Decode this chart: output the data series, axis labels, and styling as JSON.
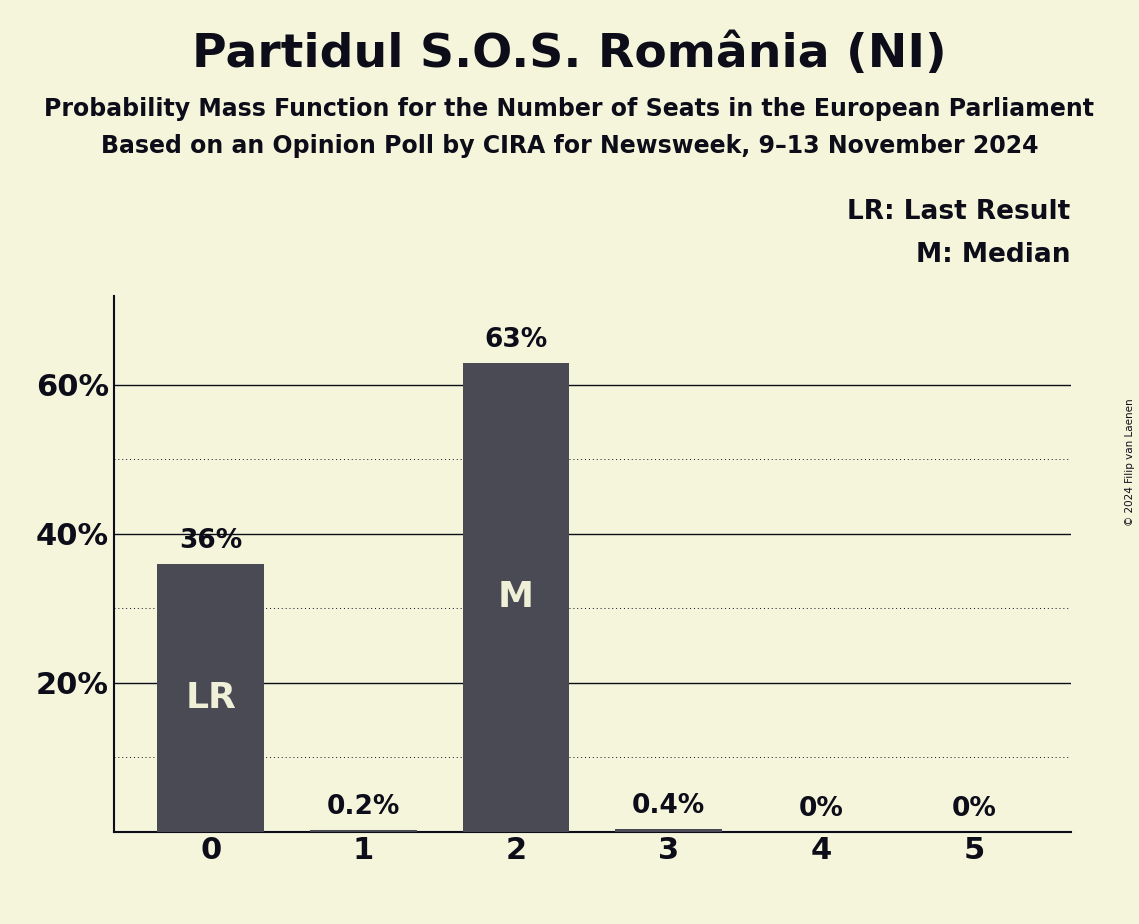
{
  "title": "Partidul S.O.S. România (NI)",
  "subtitle1": "Probability Mass Function for the Number of Seats in the European Parliament",
  "subtitle2": "Based on an Opinion Poll by CIRA for Newsweek, 9–13 November 2024",
  "copyright": "© 2024 Filip van Laenen",
  "categories": [
    0,
    1,
    2,
    3,
    4,
    5
  ],
  "values": [
    0.36,
    0.002,
    0.63,
    0.004,
    0.0,
    0.0
  ],
  "bar_color": "#4a4a55",
  "background_color": "#F5F5DC",
  "label_color": "#F0F0D8",
  "text_color": "#0d0d1a",
  "bar_labels": [
    "36%",
    "0.2%",
    "63%",
    "0.4%",
    "0%",
    "0%"
  ],
  "bar_annotations": [
    "LR",
    "",
    "M",
    "",
    "",
    ""
  ],
  "legend_lines": [
    "LR: Last Result",
    "M: Median"
  ],
  "ylim": [
    0,
    0.72
  ],
  "yticks": [
    0.0,
    0.2,
    0.4,
    0.6
  ],
  "ytick_labels": [
    "",
    "20%",
    "40%",
    "60%"
  ],
  "dotted_yticks": [
    0.1,
    0.3,
    0.5
  ],
  "title_fontsize": 34,
  "subtitle_fontsize": 17,
  "tick_fontsize": 22,
  "label_fontsize": 19,
  "annotation_fontsize": 26,
  "copyright_fontsize": 7.5
}
